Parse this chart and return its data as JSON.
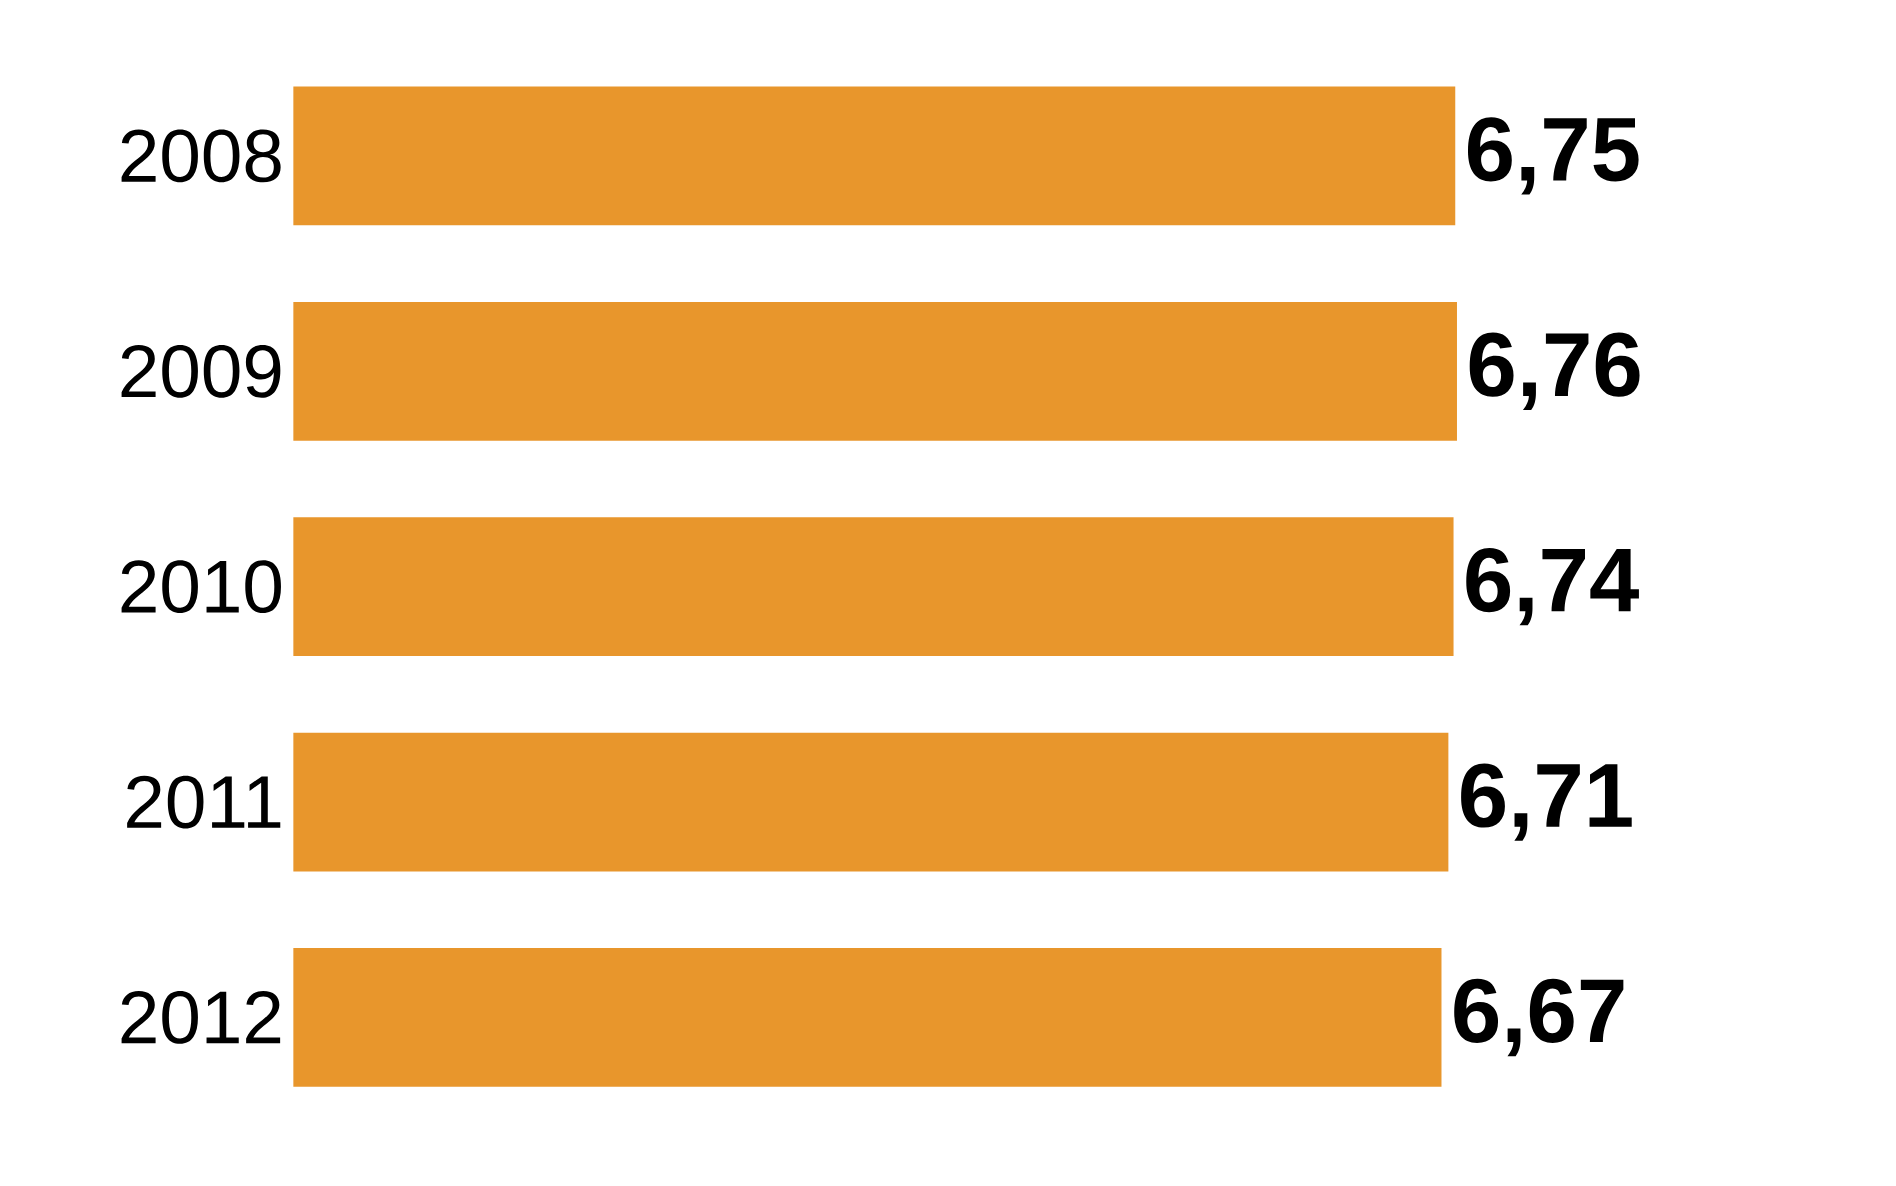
{
  "chart_data": {
    "type": "bar",
    "orientation": "horizontal",
    "categories": [
      "2008",
      "2009",
      "2010",
      "2011",
      "2012"
    ],
    "values": [
      6.75,
      6.76,
      6.74,
      6.71,
      6.67
    ],
    "value_labels": [
      "6,75",
      "6,76",
      "6,74",
      "6,71",
      "6,67"
    ],
    "color": "#e8962c"
  }
}
